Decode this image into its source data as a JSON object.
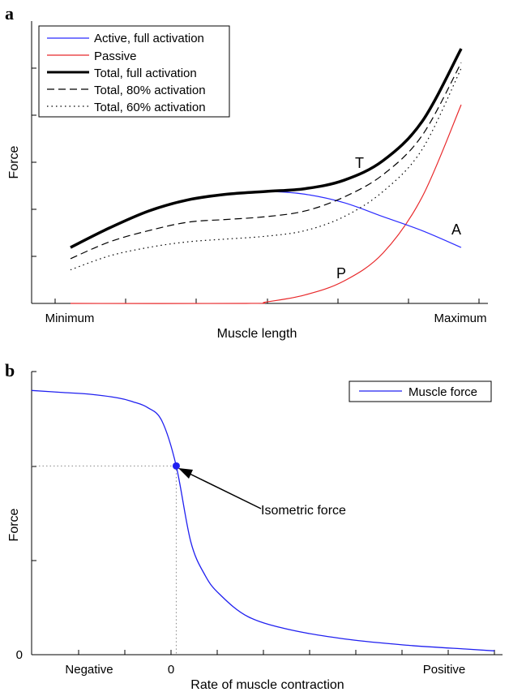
{
  "colors": {
    "active": "#2b2bff",
    "passive": "#e8282a",
    "total": "#000000",
    "muscle_force": "#2020f0",
    "axis": "#000000"
  },
  "chart_data": [
    {
      "type": "line",
      "panel_label": "a",
      "xlabel": "Muscle length",
      "ylabel": "Force",
      "x_tick_labels": [
        "Minimum",
        "Maximum"
      ],
      "xlim": [
        0,
        1
      ],
      "ylim": [
        0,
        1
      ],
      "grid": false,
      "legend_position": "top-left",
      "curve_labels": {
        "total": "T",
        "active": "A",
        "passive": "P"
      },
      "series": [
        {
          "name": "Active, full activation",
          "style": "solid-thin",
          "color": "#2b2bff",
          "x": [
            0.0,
            0.1,
            0.2,
            0.3,
            0.4,
            0.5,
            0.6,
            0.7,
            0.8,
            0.9,
            1.0
          ],
          "y": [
            0.2,
            0.27,
            0.33,
            0.37,
            0.39,
            0.4,
            0.39,
            0.36,
            0.31,
            0.26,
            0.2
          ]
        },
        {
          "name": "Passive",
          "style": "solid-thin",
          "color": "#e8282a",
          "x": [
            0.0,
            0.45,
            0.5,
            0.6,
            0.7,
            0.8,
            0.9,
            1.0
          ],
          "y": [
            0.0,
            0.0,
            0.005,
            0.03,
            0.08,
            0.18,
            0.38,
            0.71
          ]
        },
        {
          "name": "Total, full activation",
          "style": "solid-thick",
          "color": "#000000",
          "x": [
            0.0,
            0.1,
            0.2,
            0.3,
            0.4,
            0.5,
            0.6,
            0.7,
            0.8,
            0.9,
            1.0
          ],
          "y": [
            0.2,
            0.27,
            0.33,
            0.37,
            0.39,
            0.4,
            0.41,
            0.44,
            0.51,
            0.65,
            0.91
          ]
        },
        {
          "name": "Total, 80% activation",
          "style": "dashed",
          "color": "#000000",
          "x": [
            0.0,
            0.1,
            0.2,
            0.3,
            0.4,
            0.5,
            0.6,
            0.7,
            0.8,
            0.9,
            1.0
          ],
          "y": [
            0.16,
            0.22,
            0.26,
            0.29,
            0.3,
            0.31,
            0.33,
            0.38,
            0.46,
            0.6,
            0.86
          ]
        },
        {
          "name": "Total, 60% activation",
          "style": "dotted",
          "color": "#000000",
          "x": [
            0.0,
            0.1,
            0.2,
            0.3,
            0.4,
            0.5,
            0.6,
            0.7,
            0.8,
            0.9,
            1.0
          ],
          "y": [
            0.12,
            0.17,
            0.2,
            0.22,
            0.23,
            0.24,
            0.26,
            0.31,
            0.4,
            0.55,
            0.84
          ]
        }
      ]
    },
    {
      "type": "line",
      "panel_label": "b",
      "xlabel": "Rate of muscle contraction",
      "ylabel": "Force",
      "x_tick_labels": [
        "Negative",
        "0",
        "Positive"
      ],
      "y_tick_labels": [
        "0"
      ],
      "xlim": [
        -1,
        2.2
      ],
      "ylim": [
        0,
        1.5
      ],
      "grid": false,
      "legend_position": "top-right",
      "series": [
        {
          "name": "Muscle force",
          "color": "#2020f0",
          "x": [
            -1.0,
            -0.8,
            -0.6,
            -0.4,
            -0.3,
            -0.2,
            -0.1,
            0.0,
            0.1,
            0.2,
            0.3,
            0.5,
            0.8,
            1.2,
            1.6,
            2.0,
            2.2
          ],
          "y": [
            1.4,
            1.39,
            1.38,
            1.36,
            1.34,
            1.31,
            1.24,
            1.0,
            0.6,
            0.42,
            0.32,
            0.2,
            0.13,
            0.08,
            0.05,
            0.03,
            0.02
          ]
        }
      ],
      "highlight_point": {
        "x": 0,
        "y": 1.0
      },
      "annotation": {
        "text": "Isometric force",
        "points_to": {
          "x": 0,
          "y": 1.0
        }
      }
    }
  ]
}
